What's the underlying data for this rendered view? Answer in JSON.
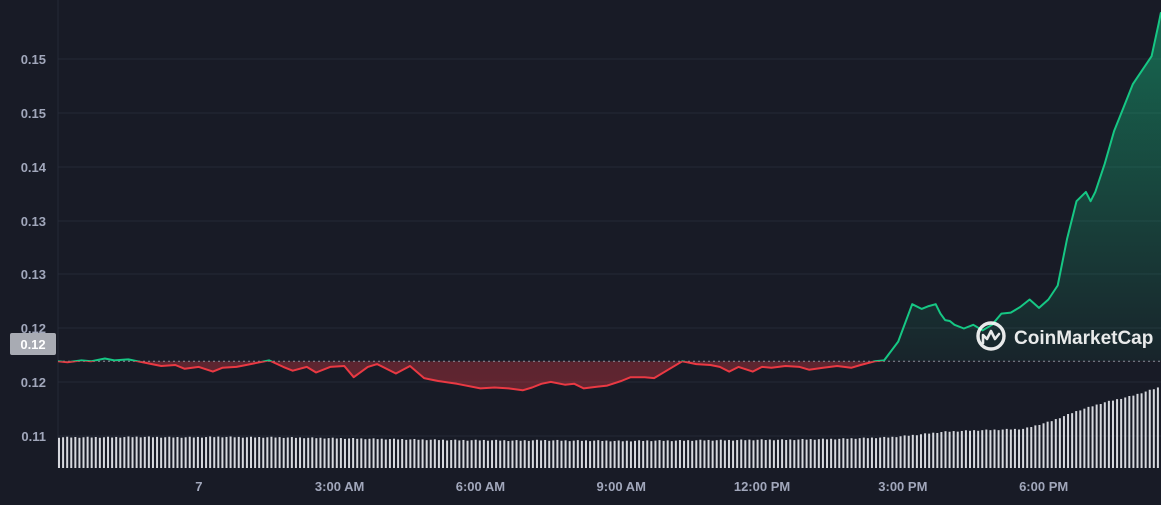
{
  "chart_data": {
    "type": "line",
    "title": "",
    "xlabel": "",
    "ylabel": "",
    "y_tick_labels": [
      "0.15",
      "0.15",
      "0.14",
      "0.13",
      "0.13",
      "0.12",
      "0.12",
      "0.11"
    ],
    "x_tick_labels": [
      "7",
      "3:00 AM",
      "6:00 AM",
      "9:00 AM",
      "12:00 PM",
      "3:00 PM",
      "6:00 PM"
    ],
    "x_ticks_hours": [
      0,
      3,
      6,
      9,
      12,
      15,
      18
    ],
    "x_range_hours": [
      -3,
      20.5
    ],
    "ylim": [
      0.1095,
      0.1595
    ],
    "baseline_value": 0.1209,
    "baseline_label": "0.12",
    "grid": true,
    "colors": {
      "up_line": "#16c784",
      "down_line": "#ea3943",
      "background": "#181b26",
      "grid": "#252a37",
      "volume": "#d6d8de",
      "axis_text": "#a1a7bb"
    },
    "series": [
      {
        "x_hours": [
          -3.0,
          -2.8,
          -2.5,
          -2.3,
          -2.0,
          -1.8,
          -1.5,
          -1.3,
          -1.0,
          -0.8,
          -0.5,
          -0.3,
          0.0,
          0.3,
          0.5,
          0.8,
          0.9,
          1.2,
          1.5,
          1.8,
          2.0,
          2.3,
          2.5,
          2.8,
          3.1,
          3.3,
          3.6,
          3.8,
          4.2,
          4.5,
          4.8,
          4.9,
          5.1,
          5.5,
          6.0,
          6.3,
          6.6,
          6.9,
          7.1,
          7.3,
          7.5,
          7.8,
          8.0,
          8.2,
          8.5,
          8.7,
          9.0,
          9.2,
          9.5,
          9.7,
          10.0,
          10.3,
          10.6,
          10.9,
          11.1,
          11.3,
          11.5,
          11.8,
          12.0,
          12.2,
          12.5,
          12.8,
          13.0,
          13.3,
          13.6,
          13.9,
          14.1,
          14.4,
          14.6,
          14.9,
          15.2,
          15.4,
          15.55,
          15.7,
          15.8,
          15.9,
          16.0,
          16.1,
          16.3,
          16.5,
          16.7,
          16.9,
          17.1,
          17.3,
          17.5,
          17.7,
          17.9,
          18.1,
          18.3,
          18.5,
          18.7,
          18.9,
          19.0,
          19.1,
          19.3,
          19.5,
          19.7,
          19.9,
          20.1,
          20.3,
          20.45,
          20.5
        ],
        "y": [
          0.1209,
          0.1208,
          0.121,
          0.1209,
          0.1212,
          0.121,
          0.1211,
          0.1209,
          0.1206,
          0.1204,
          0.1205,
          0.1201,
          0.1203,
          0.1198,
          0.1202,
          0.1203,
          0.1204,
          0.1207,
          0.121,
          0.1203,
          0.1199,
          0.1203,
          0.1197,
          0.1203,
          0.1204,
          0.1192,
          0.1203,
          0.1206,
          0.1196,
          0.1204,
          0.1191,
          0.119,
          0.1188,
          0.1185,
          0.118,
          0.1181,
          0.118,
          0.1178,
          0.1181,
          0.1185,
          0.1187,
          0.1184,
          0.1185,
          0.118,
          0.1182,
          0.1183,
          0.1188,
          0.1192,
          0.1192,
          0.1191,
          0.12,
          0.1209,
          0.1206,
          0.1205,
          0.1203,
          0.1198,
          0.1203,
          0.1198,
          0.1203,
          0.1202,
          0.1204,
          0.1203,
          0.12,
          0.1202,
          0.1204,
          0.1202,
          0.1205,
          0.1209,
          0.121,
          0.123,
          0.127,
          0.1265,
          0.1268,
          0.127,
          0.126,
          0.1253,
          0.1252,
          0.1248,
          0.1244,
          0.1248,
          0.1242,
          0.1248,
          0.126,
          0.1261,
          0.1267,
          0.1275,
          0.1266,
          0.1275,
          0.129,
          0.134,
          0.138,
          0.139,
          0.138,
          0.139,
          0.142,
          0.1455,
          0.148,
          0.1505,
          0.152,
          0.1535,
          0.157,
          0.1582
        ]
      }
    ],
    "volume_level": [
      0.72,
      0.72,
      0.72,
      0.73,
      0.72,
      0.72,
      0.73,
      0.72,
      0.72,
      0.71,
      0.7,
      0.69,
      0.68,
      0.67,
      0.66,
      0.65,
      0.65,
      0.64,
      0.65,
      0.64,
      0.64,
      0.63,
      0.64,
      0.64,
      0.65,
      0.65,
      0.66,
      0.66,
      0.67,
      0.68,
      0.7,
      0.72,
      0.78,
      0.85,
      0.88,
      0.9,
      0.92,
      1.1,
      1.35,
      1.55,
      1.7,
      1.9
    ]
  },
  "watermark": {
    "brand": "CoinMarketCap",
    "icon": "coinmarketcap-logo-icon"
  }
}
